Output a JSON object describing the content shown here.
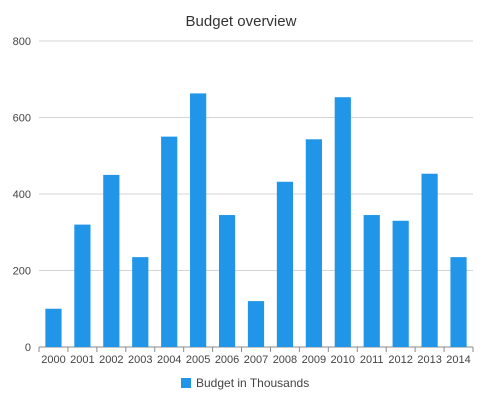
{
  "chart_data": {
    "type": "bar",
    "title": "Budget overview",
    "categories": [
      "2000",
      "2001",
      "2002",
      "2003",
      "2004",
      "2005",
      "2006",
      "2007",
      "2008",
      "2009",
      "2010",
      "2011",
      "2012",
      "2013",
      "2014"
    ],
    "series": [
      {
        "name": "Budget in Thousands",
        "values": [
          100,
          320,
          450,
          235,
          550,
          663,
          345,
          120,
          432,
          543,
          653,
          345,
          330,
          453,
          235
        ],
        "color": "#2196e8"
      }
    ],
    "yticks": [
      0,
      200,
      400,
      600,
      800
    ],
    "ylim": [
      0,
      800
    ],
    "grid": true,
    "legend_position": "bottom",
    "colors": {
      "bar": "#2196e8",
      "grid": "#d4d4d4",
      "axis": "#8a8a8a",
      "text": "#444444"
    }
  }
}
